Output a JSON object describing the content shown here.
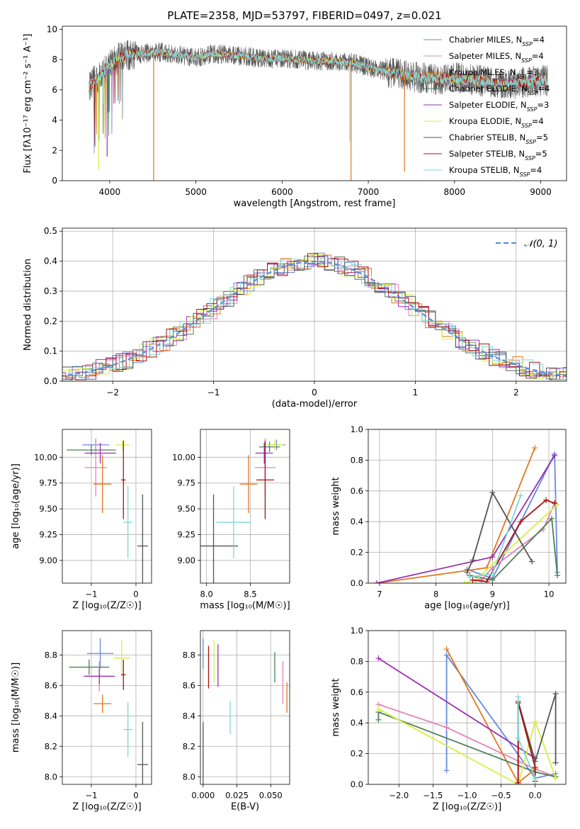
{
  "title": "PLATE=2358, MJD=53797, FIBERID=0497, z=0.021",
  "colors": [
    "#6688dd",
    "#e283b6",
    "#e07820",
    "#4f7f5a",
    "#9b30b0",
    "#d8f040",
    "#555555",
    "#aa1111",
    "#7dd8d8"
  ],
  "chart_data": [
    {
      "id": "spectrum",
      "type": "line",
      "xlabel": "wavelength [Angstrom, rest frame]",
      "ylabel": "Flux [fλ10⁻¹⁷ erg cm⁻² s⁻¹ A⁻¹]",
      "xlim": [
        3450,
        9300
      ],
      "ylim": [
        0,
        10.2
      ],
      "xticks": [
        4000,
        5000,
        6000,
        7000,
        8000,
        9000
      ],
      "yticks": [
        0,
        2,
        4,
        6,
        8,
        10
      ],
      "legend_position": "top-right",
      "series": [
        {
          "name": "Chabrier MILES, N_SSP=4"
        },
        {
          "name": "Salpeter MILES, N_SSP=4"
        },
        {
          "name": "Kroupa MILES, N_SSP=3"
        },
        {
          "name": "Chabrier ELODIE, N_SSP=4"
        },
        {
          "name": "Salpeter ELODIE, N_SSP=3"
        },
        {
          "name": "Kroupa ELODIE, N_SSP=4"
        },
        {
          "name": "Chabrier STELIB, N_SSP=5"
        },
        {
          "name": "Salpeter STELIB, N_SSP=5"
        },
        {
          "name": "Kroupa STELIB, N_SSP=4"
        }
      ],
      "continuum": {
        "x": [
          3750,
          3800,
          3900,
          4000,
          4100,
          4200,
          4400,
          4600,
          4800,
          5000,
          5200,
          5400,
          5600,
          5800,
          6000,
          6200,
          6400,
          6600,
          6800,
          7000,
          7200,
          7400,
          7600,
          7800,
          8000,
          8200,
          8400,
          8600,
          8800,
          9000,
          9100
        ],
        "y": [
          6.2,
          6.5,
          6.9,
          7.6,
          8.1,
          8.3,
          8.4,
          8.5,
          8.3,
          8.1,
          8.4,
          8.3,
          8.2,
          8.0,
          8.1,
          8.0,
          7.9,
          7.9,
          7.8,
          7.5,
          7.2,
          7.0,
          6.8,
          6.7,
          6.8,
          6.7,
          6.5,
          6.3,
          6.5,
          6.6,
          6.6
        ]
      },
      "spikes_down": [
        {
          "x": 4510,
          "y": 0.0
        },
        {
          "x": 6800,
          "y": 0.0
        },
        {
          "x": 6785,
          "y": 2.6
        },
        {
          "x": 7420,
          "y": 0.6
        },
        {
          "x": 3870,
          "y": 0.7
        },
        {
          "x": 3970,
          "y": 1.6
        }
      ]
    },
    {
      "id": "residual_hist",
      "type": "line",
      "xlabel": "(data-model)/error",
      "ylabel": "Normed distribution",
      "xlim": [
        -2.5,
        2.5
      ],
      "ylim": [
        0,
        0.51
      ],
      "xticks": [
        -2,
        -1,
        0,
        1,
        2
      ],
      "yticks": [
        0.0,
        0.1,
        0.2,
        0.3,
        0.4,
        0.5
      ],
      "grid": true,
      "legend": "𝒩(0, 1)",
      "legend_position": "top-right",
      "bin_width": 0.1,
      "normal_peak": 0.399
    },
    {
      "id": "age_vs_Z",
      "type": "scatter",
      "xlabel": "Z [log₁₀(Z/Z☉)]",
      "ylabel": "age  [log₁₀(age/yr)]",
      "xlim": [
        -1.65,
        0.35
      ],
      "ylim": [
        8.78,
        10.27
      ],
      "xticks": [
        -1,
        0
      ],
      "yticks": [
        9.0,
        9.25,
        9.5,
        9.75,
        10.0
      ],
      "grid": true,
      "points": [
        {
          "x": -0.9,
          "y": 10.12,
          "xerr": 0.3,
          "yerr": 0.05
        },
        {
          "x": -0.9,
          "y": 9.9,
          "xerr": 0.25,
          "yerr": 0.28
        },
        {
          "x": -0.75,
          "y": 9.74,
          "xerr": 0.2,
          "yerr": 0.28
        },
        {
          "x": -1.0,
          "y": 10.07,
          "xerr": 0.55,
          "yerr": 0.05
        },
        {
          "x": -0.8,
          "y": 10.04,
          "xerr": 0.35,
          "yerr": 0.1
        },
        {
          "x": -0.3,
          "y": 10.12,
          "xerr": 0.15,
          "yerr": 0.05
        },
        {
          "x": 0.15,
          "y": 9.14,
          "xerr": 0.12,
          "yerr": 0.5
        },
        {
          "x": -0.28,
          "y": 9.78,
          "xerr": 0.05,
          "yerr": 0.38
        },
        {
          "x": -0.18,
          "y": 9.37,
          "xerr": 0.1,
          "yerr": 0.35
        }
      ]
    },
    {
      "id": "age_vs_mass",
      "type": "scatter",
      "xlabel": "mass [log₁₀(M/M☉)]",
      "ylabel": "",
      "xlim": [
        7.93,
        8.95
      ],
      "ylim": [
        8.78,
        10.27
      ],
      "xticks": [
        8.0,
        8.5
      ],
      "yticks": [
        9.0,
        9.25,
        9.5,
        9.75,
        10.0
      ],
      "grid": true,
      "points": [
        {
          "x": 8.8,
          "y": 10.12,
          "xerr": 0.1,
          "yerr": 0.05
        },
        {
          "x": 8.67,
          "y": 9.9,
          "xerr": 0.12,
          "yerr": 0.28
        },
        {
          "x": 8.48,
          "y": 9.74,
          "xerr": 0.1,
          "yerr": 0.28
        },
        {
          "x": 8.72,
          "y": 10.1,
          "xerr": 0.12,
          "yerr": 0.05
        },
        {
          "x": 8.66,
          "y": 10.04,
          "xerr": 0.1,
          "yerr": 0.1
        },
        {
          "x": 8.78,
          "y": 10.12,
          "xerr": 0.1,
          "yerr": 0.05
        },
        {
          "x": 8.08,
          "y": 9.14,
          "xerr": 0.28,
          "yerr": 0.5
        },
        {
          "x": 8.67,
          "y": 9.78,
          "xerr": 0.1,
          "yerr": 0.38
        },
        {
          "x": 8.31,
          "y": 9.37,
          "xerr": 0.2,
          "yerr": 0.35
        }
      ]
    },
    {
      "id": "weight_vs_age",
      "type": "line",
      "xlabel": "age  [log₁₀(age/yr)]",
      "ylabel": "mass weight",
      "xlim": [
        6.8,
        10.3
      ],
      "ylim": [
        0,
        1.0
      ],
      "xticks": [
        7,
        8,
        9,
        10
      ],
      "yticks": [
        0.0,
        0.2,
        0.4,
        0.6,
        0.8,
        1.0
      ],
      "grid": true,
      "series": [
        {
          "x": [
            8.55,
            9.0,
            10.1,
            10.15
          ],
          "y": [
            0.09,
            0.03,
            0.84,
            0.07
          ]
        },
        {
          "x": [
            8.6,
            8.8,
            9.0,
            9.9,
            10.1
          ],
          "y": [
            0.05,
            0.02,
            0.1,
            0.35,
            0.52
          ]
        },
        {
          "x": [
            6.95,
            8.9,
            9.75
          ],
          "y": [
            0.0,
            0.1,
            0.88
          ]
        },
        {
          "x": [
            8.6,
            9.0,
            10.05,
            10.15
          ],
          "y": [
            0.05,
            0.02,
            0.42,
            0.05
          ]
        },
        {
          "x": [
            6.95,
            9.0,
            10.1
          ],
          "y": [
            0.0,
            0.17,
            0.83
          ]
        },
        {
          "x": [
            8.5,
            8.7,
            10.15
          ],
          "y": [
            0.0,
            0.02,
            0.51
          ]
        },
        {
          "x": [
            8.55,
            8.65,
            9.0,
            9.7
          ],
          "y": [
            0.07,
            0.15,
            0.59,
            0.14
          ]
        },
        {
          "x": [
            8.65,
            8.9,
            9.5,
            9.95,
            10.1
          ],
          "y": [
            0.02,
            0.01,
            0.4,
            0.54,
            0.52
          ]
        },
        {
          "x": [
            8.6,
            9.0,
            9.5
          ],
          "y": [
            0.04,
            0.06,
            0.57
          ]
        }
      ]
    },
    {
      "id": "mass_vs_Z",
      "type": "scatter",
      "xlabel": "Z [log₁₀(Z/Z☉)]",
      "ylabel": "mass [log₁₀(M/M☉)]",
      "xlim": [
        -1.65,
        0.35
      ],
      "ylim": [
        7.95,
        8.96
      ],
      "xticks": [
        -1,
        0
      ],
      "yticks": [
        8.0,
        8.2,
        8.4,
        8.6,
        8.8
      ],
      "grid": true,
      "points": [
        {
          "x": -0.8,
          "y": 8.81,
          "xerr": 0.3,
          "yerr": 0.1
        },
        {
          "x": -0.82,
          "y": 8.66,
          "xerr": 0.28,
          "yerr": 0.1
        },
        {
          "x": -0.75,
          "y": 8.48,
          "xerr": 0.2,
          "yerr": 0.06
        },
        {
          "x": -1.05,
          "y": 8.72,
          "xerr": 0.45,
          "yerr": 0.05
        },
        {
          "x": -0.82,
          "y": 8.66,
          "xerr": 0.35,
          "yerr": 0.05
        },
        {
          "x": -0.32,
          "y": 8.78,
          "xerr": 0.18,
          "yerr": 0.12
        },
        {
          "x": 0.15,
          "y": 8.08,
          "xerr": 0.12,
          "yerr": 0.28
        },
        {
          "x": -0.28,
          "y": 8.67,
          "xerr": 0.05,
          "yerr": 0.1
        },
        {
          "x": -0.18,
          "y": 8.31,
          "xerr": 0.1,
          "yerr": 0.18
        }
      ]
    },
    {
      "id": "mass_vs_ebv",
      "type": "scatter",
      "xlabel": "E(B-V)",
      "ylabel": "",
      "xlim": [
        -0.002,
        0.064
      ],
      "ylim": [
        7.95,
        8.96
      ],
      "xticks": [
        0.0,
        0.025,
        0.05
      ],
      "yticks": [
        8.0,
        8.2,
        8.4,
        8.6,
        8.8
      ],
      "grid": true,
      "points": [
        {
          "x": 0.0,
          "y": 8.81,
          "xerr": 0,
          "yerr": 0.1
        },
        {
          "x": 0.059,
          "y": 8.62,
          "xerr": 0,
          "yerr": 0.14
        },
        {
          "x": 0.062,
          "y": 8.52,
          "xerr": 0,
          "yerr": 0.1
        },
        {
          "x": 0.053,
          "y": 8.72,
          "xerr": 0,
          "yerr": 0.1
        },
        {
          "x": 0.011,
          "y": 8.73,
          "xerr": 0,
          "yerr": 0.14
        },
        {
          "x": 0.008,
          "y": 8.76,
          "xerr": 0,
          "yerr": 0.14
        },
        {
          "x": 0.0,
          "y": 8.1,
          "xerr": 0,
          "yerr": 0.26
        },
        {
          "x": 0.004,
          "y": 8.72,
          "xerr": 0,
          "yerr": 0.14
        },
        {
          "x": 0.02,
          "y": 8.39,
          "xerr": 0,
          "yerr": 0.11
        }
      ]
    },
    {
      "id": "weight_vs_Z",
      "type": "line",
      "xlabel": "Z [log₁₀(Z/Z☉)]",
      "ylabel": "mass weight",
      "xlim": [
        -2.45,
        0.45
      ],
      "ylim": [
        0,
        1.0
      ],
      "xticks": [
        -2.0,
        -1.5,
        -1.0,
        -0.5,
        0.0
      ],
      "yticks": [
        0.0,
        0.2,
        0.4,
        0.6,
        0.8,
        1.0
      ],
      "grid": true,
      "series": [
        {
          "x": [
            -1.3,
            -1.3,
            0.0,
            0.3
          ],
          "y": [
            0.09,
            0.84,
            0.04,
            0.07
          ]
        },
        {
          "x": [
            -2.3,
            -1.3,
            0.0,
            0.3
          ],
          "y": [
            0.52,
            0.37,
            0.1,
            0.05
          ]
        },
        {
          "x": [
            -1.3,
            -0.25,
            0.0
          ],
          "y": [
            0.88,
            0.01,
            0.1
          ]
        },
        {
          "x": [
            -2.3,
            -2.3,
            0.0,
            0.3
          ],
          "y": [
            0.42,
            0.47,
            0.08,
            0.05
          ]
        },
        {
          "x": [
            -2.3,
            0.0
          ],
          "y": [
            0.82,
            0.17
          ]
        },
        {
          "x": [
            -2.3,
            -0.25,
            0.0,
            0.3
          ],
          "y": [
            0.49,
            0.0,
            0.41,
            0.04
          ]
        },
        {
          "x": [
            -0.25,
            -0.25,
            0.0,
            0.3,
            0.3
          ],
          "y": [
            0.01,
            0.54,
            0.15,
            0.59,
            0.14
          ]
        },
        {
          "x": [
            -0.25,
            -0.25,
            0.0,
            0.0
          ],
          "y": [
            0.01,
            0.53,
            0.11,
            0.02
          ]
        },
        {
          "x": [
            -0.25,
            -0.25,
            0.0,
            0.0
          ],
          "y": [
            0.57,
            0.3,
            0.04,
            0.0
          ]
        }
      ]
    }
  ]
}
